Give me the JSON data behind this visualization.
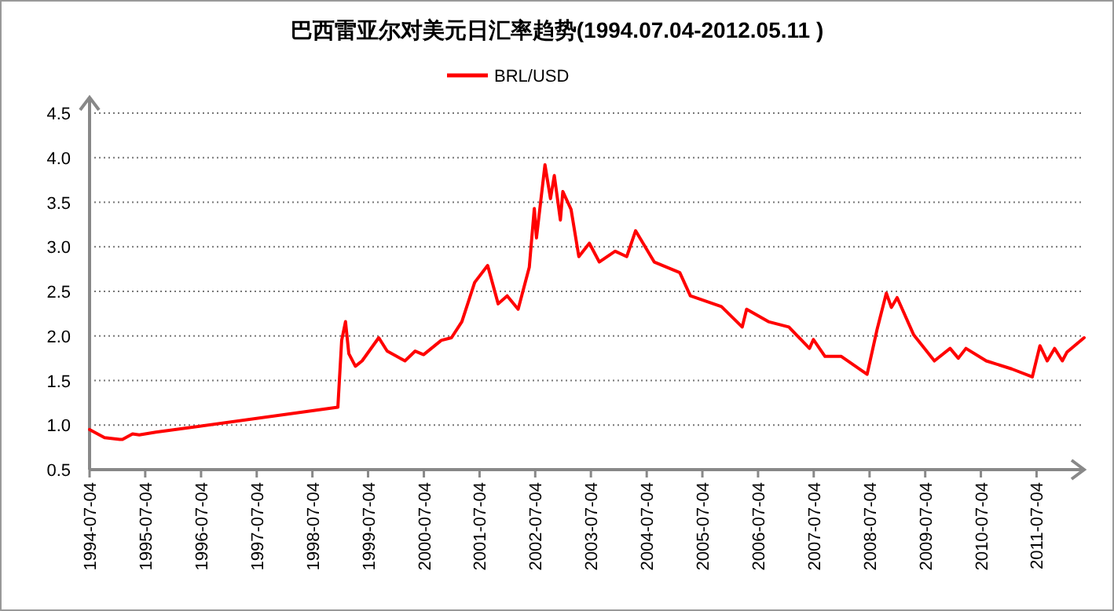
{
  "chart_data": {
    "type": "line",
    "title": "巴西雷亚尔对美元日汇率趋势(1994.07.04-2012.05.11 )",
    "x": [
      "1994-07-04",
      "1994-10-10",
      "1995-01-18",
      "1995-02-05",
      "1995-04-12",
      "1995-05-26",
      "1995-09-12",
      "1998-12-18",
      "1999-01-12",
      "1999-02-06",
      "1999-02-28",
      "1999-04-12",
      "1999-05-26",
      "1999-09-12",
      "1999-11-06",
      "2000-03-02",
      "2000-05-08",
      "2000-07-02",
      "2000-10-26",
      "2001-01-01",
      "2001-03-10",
      "2001-06-02",
      "2001-08-26",
      "2001-11-03",
      "2002-01-01",
      "2002-03-14",
      "2002-05-26",
      "2002-06-28",
      "2002-07-12",
      "2002-09-06",
      "2002-10-12",
      "2002-11-06",
      "2002-12-16",
      "2003-01-01",
      "2003-02-24",
      "2003-04-16",
      "2003-06-24",
      "2003-08-28",
      "2003-12-10",
      "2004-02-24",
      "2004-04-22",
      "2004-08-22",
      "2005-02-06",
      "2005-04-16",
      "2005-11-06",
      "2006-03-22",
      "2006-04-20",
      "2006-09-10",
      "2007-01-22",
      "2007-06-06",
      "2007-07-02",
      "2007-09-16",
      "2008-01-01",
      "2008-06-18",
      "2008-08-22",
      "2008-10-22",
      "2008-11-24",
      "2009-01-01",
      "2009-04-20",
      "2009-09-02",
      "2009-12-14",
      "2010-02-06",
      "2010-03-28",
      "2010-08-08",
      "2011-01-22",
      "2011-06-06",
      "2011-07-26",
      "2011-09-12",
      "2011-10-30",
      "2011-12-20",
      "2012-01-20",
      "2012-05-11"
    ],
    "series": [
      {
        "name": "BRL/USD",
        "color": "#ff0000",
        "values": [
          0.95,
          0.86,
          0.84,
          0.84,
          0.9,
          0.89,
          0.92,
          1.2,
          1.95,
          2.16,
          1.8,
          1.66,
          1.72,
          1.98,
          1.83,
          1.72,
          1.83,
          1.79,
          1.95,
          1.98,
          2.16,
          2.6,
          2.79,
          2.36,
          2.45,
          2.3,
          2.77,
          3.43,
          3.1,
          3.92,
          3.54,
          3.8,
          3.3,
          3.62,
          3.42,
          2.89,
          3.04,
          2.83,
          2.95,
          2.89,
          3.18,
          2.83,
          2.71,
          2.45,
          2.33,
          2.1,
          2.3,
          2.16,
          2.1,
          1.86,
          1.96,
          1.77,
          1.77,
          1.57,
          2.07,
          2.48,
          2.32,
          2.43,
          2.01,
          1.72,
          1.86,
          1.75,
          1.86,
          1.72,
          1.63,
          1.54,
          1.89,
          1.72,
          1.86,
          1.72,
          1.82,
          1.98
        ]
      }
    ],
    "xlim": [
      "1994-07-04",
      "2012-05-11"
    ],
    "xticks": [
      {
        "value": "1994-07-04",
        "label": "1994-07-04"
      },
      {
        "value": "1995-07-04",
        "label": "1995-07-04"
      },
      {
        "value": "1996-07-04",
        "label": "1996-07-04"
      },
      {
        "value": "1997-07-04",
        "label": "1997-07-04"
      },
      {
        "value": "1998-07-04",
        "label": "1998-07-04"
      },
      {
        "value": "1999-07-04",
        "label": "1999-07-04"
      },
      {
        "value": "2000-07-04",
        "label": "2000-07-04"
      },
      {
        "value": "2001-07-04",
        "label": "2001-07-04"
      },
      {
        "value": "2002-07-04",
        "label": "2002-07-04"
      },
      {
        "value": "2003-07-04",
        "label": "2003-07-04"
      },
      {
        "value": "2004-07-04",
        "label": "2004-07-04"
      },
      {
        "value": "2005-07-04",
        "label": "2005-07-04"
      },
      {
        "value": "2006-07-04",
        "label": "2006-07-04"
      },
      {
        "value": "2007-07-04",
        "label": "2007-07-04"
      },
      {
        "value": "2008-07-04",
        "label": "2008-07-04"
      },
      {
        "value": "2009-07-04",
        "label": "2009-07-04"
      },
      {
        "value": "2010-07-04",
        "label": "2010-07-04"
      },
      {
        "value": "2011-07-04",
        "label": "2011-07-04"
      }
    ],
    "ylim": [
      0.5,
      4.5
    ],
    "yticks": [
      {
        "value": 0.5,
        "label": "0.5"
      },
      {
        "value": 1,
        "label": "1.0"
      },
      {
        "value": 1.5,
        "label": "1.5"
      },
      {
        "value": 2,
        "label": "2.0"
      },
      {
        "value": 2.5,
        "label": "2.5"
      },
      {
        "value": 3,
        "label": "3.0"
      },
      {
        "value": 3.5,
        "label": "3.5"
      },
      {
        "value": 4,
        "label": "4.0"
      },
      {
        "value": 4.5,
        "label": "4.5"
      }
    ],
    "grid": "y",
    "legend": "top",
    "marker": "none",
    "line_style": "solid"
  }
}
